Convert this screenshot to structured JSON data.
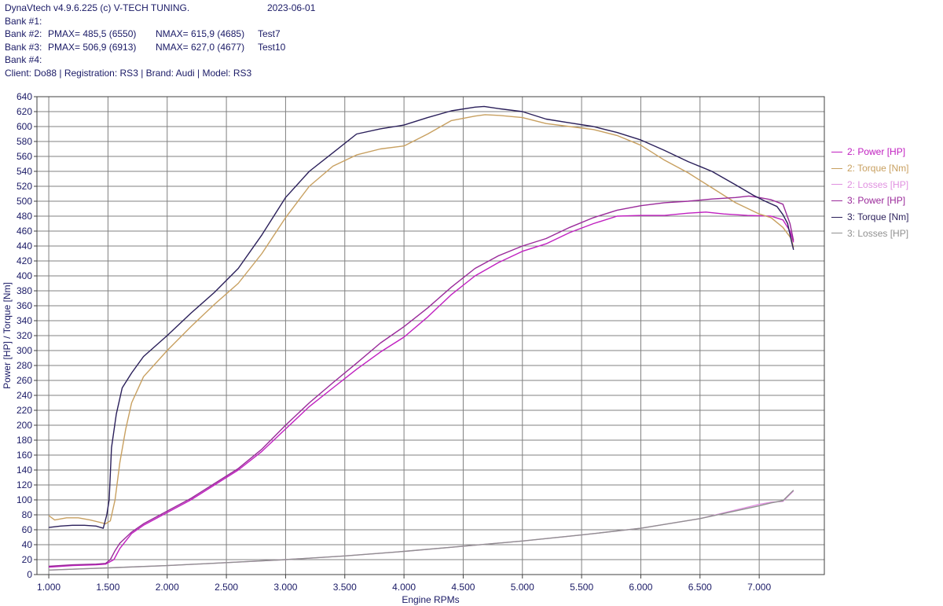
{
  "header": {
    "app": "DynaVtech v4.9.6.225 (c) V-TECH TUNING.",
    "date": "2023-06-01",
    "banks": [
      {
        "label": "Bank #1:",
        "pmax": "",
        "nmax": "",
        "test": ""
      },
      {
        "label": "Bank #2:",
        "pmax": "PMAX= 485,5 (6550)",
        "nmax": "NMAX= 615,9 (4685)",
        "test": "Test7"
      },
      {
        "label": "Bank #3:",
        "pmax": "PMAX= 506,9 (6913)",
        "nmax": "NMAX= 627,0 (4677)",
        "test": "Test10"
      },
      {
        "label": "Bank #4:",
        "pmax": "",
        "nmax": "",
        "test": ""
      }
    ],
    "client": "Client: Do88 | Registration: RS3 | Brand: Audi | Model: RS3"
  },
  "colors": {
    "axis_text": "#1a1a66",
    "grid": "#808080",
    "power2": "#c020c0",
    "torque2": "#c8a060",
    "losses2": "#e090e0",
    "power3": "#9a2a9a",
    "torque3": "#2a1f5a",
    "losses3": "#909090"
  },
  "chart_data": {
    "type": "line",
    "xlabel": "Engine RPMs",
    "ylabel": "Power [HP] / Torque [Nm]",
    "xlim": [
      900,
      7550
    ],
    "ylim": [
      0,
      640
    ],
    "xticks": [
      1000,
      1500,
      2000,
      2500,
      3000,
      3500,
      4000,
      4500,
      5000,
      5500,
      6000,
      6500,
      7000
    ],
    "xtick_labels": [
      "1.000",
      "1.500",
      "2.000",
      "2.500",
      "3.000",
      "3.500",
      "4.000",
      "4.500",
      "5.000",
      "5.500",
      "6.000",
      "6.500",
      "7.000"
    ],
    "yticks": [
      0,
      20,
      40,
      60,
      80,
      100,
      120,
      140,
      160,
      180,
      200,
      220,
      240,
      260,
      280,
      300,
      320,
      340,
      360,
      380,
      400,
      420,
      440,
      460,
      480,
      500,
      520,
      540,
      560,
      580,
      600,
      620,
      640
    ],
    "grid": true,
    "legend_position": "right",
    "series": [
      {
        "name": "2: Power [HP]",
        "color_key": "power2",
        "x": [
          1000,
          1200,
          1400,
          1480,
          1550,
          1600,
          1700,
          1800,
          2000,
          2200,
          2400,
          2600,
          2800,
          3000,
          3200,
          3400,
          3600,
          3800,
          4000,
          4200,
          4400,
          4600,
          4800,
          5000,
          5200,
          5400,
          5600,
          5800,
          6000,
          6200,
          6400,
          6550,
          6700,
          6900,
          7100,
          7200,
          7260,
          7290
        ],
        "y": [
          10,
          12,
          13,
          14,
          20,
          35,
          55,
          66,
          83,
          100,
          120,
          140,
          165,
          195,
          225,
          250,
          275,
          298,
          318,
          345,
          375,
          400,
          418,
          433,
          443,
          458,
          470,
          480,
          481,
          481,
          484,
          485.5,
          483,
          481,
          480,
          475,
          460,
          445
        ]
      },
      {
        "name": "2: Torque [Nm]",
        "color_key": "torque2",
        "x": [
          1000,
          1050,
          1150,
          1250,
          1350,
          1430,
          1480,
          1520,
          1560,
          1600,
          1650,
          1700,
          1800,
          2000,
          2200,
          2400,
          2600,
          2800,
          3000,
          3200,
          3400,
          3600,
          3800,
          4000,
          4200,
          4400,
          4600,
          4685,
          4800,
          5000,
          5200,
          5400,
          5600,
          5800,
          6000,
          6200,
          6400,
          6600,
          6800,
          7000,
          7100,
          7200,
          7270,
          7290
        ],
        "y": [
          79,
          73,
          76,
          76,
          73,
          70,
          68,
          72,
          100,
          150,
          195,
          230,
          265,
          300,
          332,
          362,
          390,
          430,
          478,
          520,
          547,
          562,
          570,
          574,
          590,
          608,
          614,
          615.9,
          615,
          612,
          604,
          600,
          596,
          588,
          575,
          555,
          538,
          518,
          498,
          483,
          478,
          465,
          450,
          438
        ]
      },
      {
        "name": "2: Losses [HP]",
        "color_key": "losses2",
        "x": [
          1000,
          1500,
          2000,
          2500,
          3000,
          3500,
          4000,
          4500,
          5000,
          5500,
          6000,
          6500,
          7000,
          7100,
          7200,
          7290
        ],
        "y": [
          6,
          9,
          12,
          16,
          20,
          25,
          31,
          38,
          45,
          53,
          62,
          75,
          94,
          97,
          98,
          112
        ]
      },
      {
        "name": "3: Power [HP]",
        "color_key": "power3",
        "x": [
          1000,
          1200,
          1400,
          1480,
          1520,
          1560,
          1600,
          1700,
          1800,
          2000,
          2200,
          2400,
          2600,
          2800,
          3000,
          3200,
          3400,
          3600,
          3800,
          4000,
          4200,
          4400,
          4600,
          4800,
          5000,
          5200,
          5400,
          5600,
          5800,
          6000,
          6200,
          6400,
          6600,
          6800,
          6913,
          7000,
          7100,
          7200,
          7260,
          7290
        ],
        "y": [
          11,
          13,
          14,
          15,
          20,
          32,
          42,
          57,
          68,
          85,
          102,
          122,
          142,
          168,
          200,
          230,
          257,
          283,
          310,
          332,
          357,
          385,
          410,
          427,
          440,
          450,
          465,
          478,
          488,
          494,
          498,
          500,
          503,
          505,
          506.9,
          505,
          502,
          496,
          470,
          447
        ]
      },
      {
        "name": "3: Torque [Nm]",
        "color_key": "torque3",
        "x": [
          1000,
          1100,
          1200,
          1300,
          1400,
          1460,
          1490,
          1510,
          1530,
          1570,
          1620,
          1700,
          1800,
          2000,
          2200,
          2400,
          2600,
          2800,
          3000,
          3200,
          3400,
          3600,
          3800,
          4000,
          4200,
          4400,
          4600,
          4677,
          4800,
          5000,
          5200,
          5400,
          5600,
          5800,
          6000,
          6200,
          6400,
          6600,
          6800,
          6950,
          7050,
          7150,
          7200,
          7240,
          7270,
          7290
        ],
        "y": [
          63,
          65,
          66,
          66,
          65,
          62,
          80,
          100,
          170,
          215,
          250,
          270,
          292,
          320,
          350,
          378,
          410,
          455,
          505,
          540,
          565,
          590,
          597,
          602,
          612,
          621,
          626,
          627,
          624,
          620,
          610,
          605,
          600,
          592,
          582,
          568,
          553,
          540,
          522,
          508,
          500,
          493,
          482,
          470,
          448,
          435
        ]
      },
      {
        "name": "3: Losses [HP]",
        "color_key": "losses3",
        "x": [
          1000,
          1500,
          2000,
          2500,
          3000,
          3500,
          4000,
          4500,
          5000,
          5500,
          6000,
          6500,
          7000,
          7100,
          7200,
          7290
        ],
        "y": [
          6,
          9,
          12,
          16,
          20,
          25,
          31,
          38,
          45,
          53,
          62,
          75,
          92,
          96,
          99,
          113
        ]
      }
    ]
  }
}
